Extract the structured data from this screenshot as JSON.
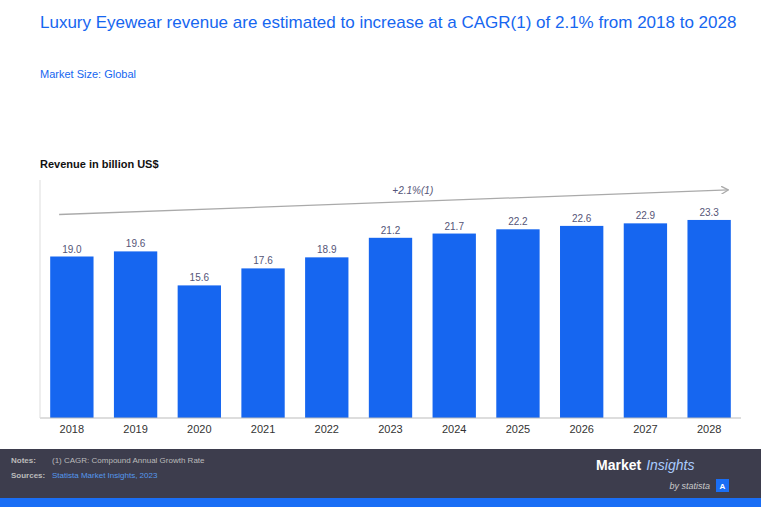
{
  "chart_data": {
    "type": "bar",
    "title": "Luxury Eyewear revenue are estimated to increase at a CAGR(1) of 2.1% from 2018 to 2028",
    "subtitle": "Market Size: Global",
    "y_label": "Revenue in billion US$",
    "categories": [
      "2018",
      "2019",
      "2020",
      "2021",
      "2022",
      "2023",
      "2024",
      "2025",
      "2026",
      "2027",
      "2028"
    ],
    "values": [
      19.0,
      19.6,
      15.6,
      17.6,
      18.9,
      21.2,
      21.7,
      22.2,
      22.6,
      22.9,
      23.3
    ],
    "value_labels": [
      "19.0",
      "19.6",
      "15.6",
      "17.6",
      "18.9",
      "21.2",
      "21.7",
      "22.2",
      "22.6",
      "22.9",
      "23.3"
    ],
    "color": "#1666f0",
    "ylim": [
      0,
      28
    ],
    "grid": false,
    "data_labels": true,
    "tick_labels": "x",
    "annotations": {
      "trend": "+2.1%(1)",
      "notes_label": "Notes:",
      "notes_text": "(1) CAGR: Compound Annual Growth Rate",
      "sources_label": "Sources:",
      "sources_text": "Statista Market Insights, 2023",
      "logo_market": "Market",
      "logo_insights": "Insights",
      "logo_by": "by statista",
      "logo_icon": "A"
    }
  }
}
